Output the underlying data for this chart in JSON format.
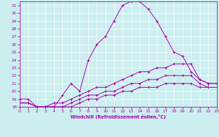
{
  "xlabel": "Windchill (Refroidissement éolien,°C)",
  "xlim": [
    0,
    23
  ],
  "ylim": [
    18,
    31.5
  ],
  "yticks": [
    18,
    19,
    20,
    21,
    22,
    23,
    24,
    25,
    26,
    27,
    28,
    29,
    30,
    31
  ],
  "xticks": [
    0,
    1,
    2,
    3,
    4,
    5,
    6,
    7,
    8,
    9,
    10,
    11,
    12,
    13,
    14,
    15,
    16,
    17,
    18,
    19,
    20,
    21,
    22,
    23
  ],
  "bg_color": "#cceeee",
  "line_color": "#aa00aa",
  "grid_color": "#ffffff",
  "line1_x": [
    0,
    1,
    2,
    3,
    4,
    5,
    6,
    7,
    8,
    9,
    10,
    11,
    12,
    13,
    14,
    15,
    16,
    17,
    18,
    19,
    20,
    21,
    22,
    23
  ],
  "line1_y": [
    19.0,
    19.0,
    18.0,
    18.0,
    18.0,
    19.5,
    21.0,
    20.0,
    24.0,
    26.0,
    27.0,
    29.0,
    31.0,
    31.5,
    31.5,
    30.5,
    29.0,
    27.0,
    25.0,
    24.5,
    22.5,
    21.5,
    21.0,
    21.0
  ],
  "line2_x": [
    0,
    1,
    2,
    3,
    4,
    5,
    6,
    7,
    8,
    9,
    10,
    11,
    12,
    13,
    14,
    15,
    16,
    17,
    18,
    19,
    20,
    21,
    22,
    23
  ],
  "line2_y": [
    18.5,
    18.5,
    18.0,
    18.0,
    18.5,
    18.5,
    19.0,
    19.5,
    20.0,
    20.5,
    20.5,
    21.0,
    21.5,
    22.0,
    22.5,
    22.5,
    23.0,
    23.0,
    23.5,
    23.5,
    23.5,
    21.5,
    21.0,
    21.0
  ],
  "line3_x": [
    0,
    1,
    2,
    3,
    4,
    5,
    6,
    7,
    8,
    9,
    10,
    11,
    12,
    13,
    14,
    15,
    16,
    17,
    18,
    19,
    20,
    21,
    22,
    23
  ],
  "line3_y": [
    18.5,
    18.5,
    18.0,
    18.0,
    18.0,
    18.0,
    18.5,
    19.0,
    19.5,
    19.5,
    20.0,
    20.0,
    20.5,
    21.0,
    21.0,
    21.5,
    21.5,
    22.0,
    22.0,
    22.0,
    22.0,
    21.0,
    20.5,
    20.5
  ],
  "line4_x": [
    0,
    1,
    2,
    3,
    4,
    5,
    6,
    7,
    8,
    9,
    10,
    11,
    12,
    13,
    14,
    15,
    16,
    17,
    18,
    19,
    20,
    21,
    22,
    23
  ],
  "line4_y": [
    18.5,
    18.5,
    18.0,
    18.0,
    18.0,
    18.0,
    18.0,
    18.5,
    19.0,
    19.0,
    19.5,
    19.5,
    20.0,
    20.0,
    20.5,
    20.5,
    20.5,
    21.0,
    21.0,
    21.0,
    21.0,
    20.5,
    20.5,
    20.5
  ]
}
